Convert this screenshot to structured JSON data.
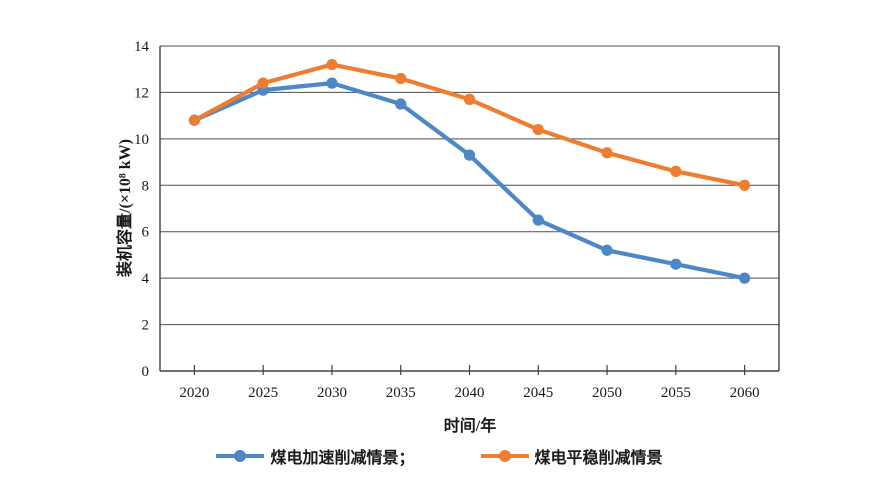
{
  "chart_data": {
    "type": "line",
    "title": "",
    "xlabel": "时间/年",
    "ylabel": "装机容量/(×10⁸ kW)",
    "categories": [
      "2020",
      "2025",
      "2030",
      "2035",
      "2040",
      "2045",
      "2050",
      "2055",
      "2060"
    ],
    "series": [
      {
        "name": "煤电加速削减情景",
        "legend_label": "煤电加速削减情景；",
        "color": "#4E87C6",
        "values": [
          10.8,
          12.1,
          12.4,
          11.5,
          9.3,
          6.5,
          5.2,
          4.6,
          4.0
        ]
      },
      {
        "name": "煤电平稳削减情景",
        "legend_label": "煤电平稳削减情景",
        "color": "#ED7D31",
        "values": [
          10.8,
          12.4,
          13.2,
          12.6,
          11.7,
          10.4,
          9.4,
          8.6,
          8.0
        ]
      }
    ],
    "ylim": [
      0,
      14
    ],
    "yticks": [
      0,
      2,
      4,
      6,
      8,
      10,
      12,
      14
    ],
    "grid": "horizontal",
    "legend_position": "bottom",
    "axis_color": "#404040",
    "gridline_color": "#4d4d4d"
  }
}
